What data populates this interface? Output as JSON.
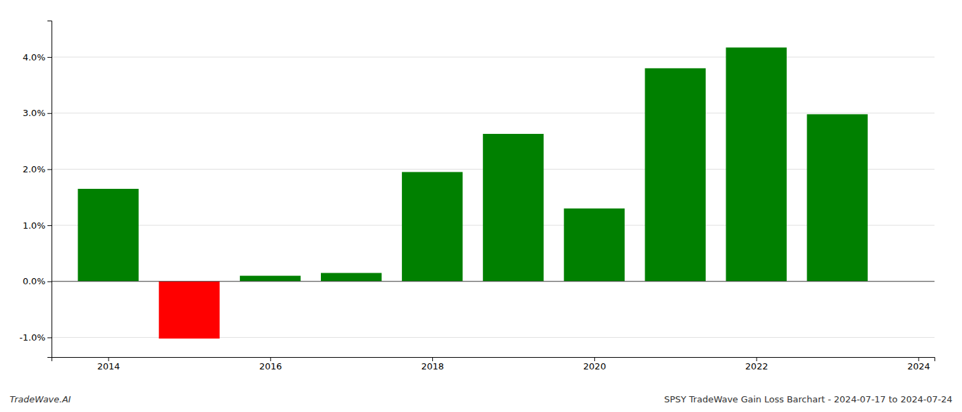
{
  "chart_data": {
    "type": "bar",
    "title": "SPSY TradeWave Gain Loss Barchart - 2024-07-17 to 2024-07-24",
    "annotations": [
      "TradeWave.AI"
    ],
    "x": [
      2014,
      2015,
      2016,
      2017,
      2018,
      2019,
      2020,
      2021,
      2022,
      2023
    ],
    "values": [
      1.65,
      -1.02,
      0.1,
      0.15,
      1.95,
      2.63,
      1.3,
      3.8,
      4.17,
      2.98
    ],
    "colors": [
      "#008000",
      "#ff0000",
      "#008000",
      "#008000",
      "#008000",
      "#008000",
      "#008000",
      "#008000",
      "#008000",
      "#008000"
    ],
    "xlim": [
      2013.3,
      2024.2
    ],
    "xticks": [
      2014,
      2016,
      2018,
      2020,
      2022,
      2024
    ],
    "ylim": [
      -1.35,
      4.65
    ],
    "yticks": [
      {
        "value": -1.0,
        "label": "-1.0%"
      },
      {
        "value": 0.0,
        "label": "0.0%"
      },
      {
        "value": 1.0,
        "label": "1.0%"
      },
      {
        "value": 2.0,
        "label": "2.0%"
      },
      {
        "value": 3.0,
        "label": "3.0%"
      },
      {
        "value": 4.0,
        "label": "4.0%"
      }
    ],
    "grid": true
  }
}
